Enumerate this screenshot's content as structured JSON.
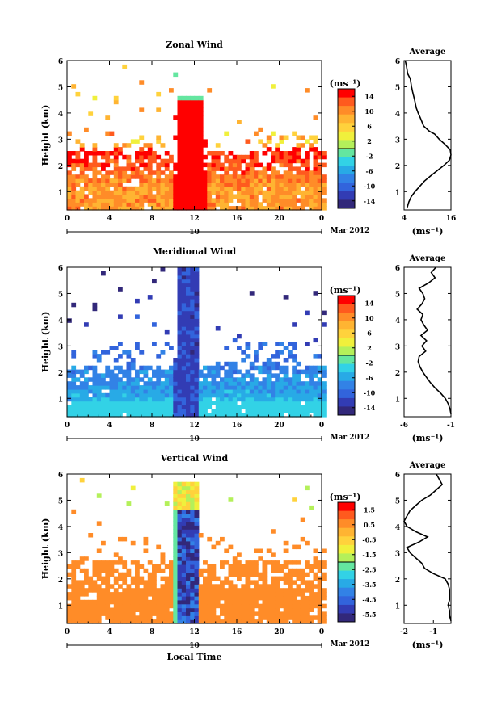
{
  "colors": {
    "colormap": [
      "#ff0000",
      "#ff5a1e",
      "#ff8c28",
      "#ffb432",
      "#ffd23c",
      "#f0f03c",
      "#b4f05a",
      "#64e6a0",
      "#32d2e6",
      "#28aae6",
      "#3282e6",
      "#3264dc",
      "#323cb4",
      "#32287a"
    ]
  },
  "chart_data": [
    {
      "type": "heatmap",
      "title": "Zonal Wind",
      "ylabel": "Height (km)",
      "xlabel": "",
      "xlim": [
        0,
        24
      ],
      "ylim": [
        0.3,
        6
      ],
      "x_ticks": [
        "0",
        "4",
        "8",
        "12",
        "16",
        "20",
        "0"
      ],
      "y_ticks": [
        "1",
        "2",
        "3",
        "4",
        "5",
        "6"
      ],
      "date_day": "10",
      "date_label": "Mar 2012",
      "colorbar": {
        "unit": "(ms⁻¹)",
        "ticks": [
          "14",
          "10",
          "6",
          "2",
          "-2",
          "-6",
          "-10",
          "-14"
        ],
        "range": [
          -15,
          15
        ]
      },
      "avg_panel": {
        "title": "Average",
        "xlabel": "(ms⁻¹)",
        "x_ticks": [
          "4",
          "16"
        ],
        "xlim": [
          4,
          16
        ],
        "y_ticks": [
          "1",
          "2",
          "3",
          "4",
          "5",
          "6"
        ],
        "profile": [
          [
            6.0,
            4.3
          ],
          [
            5.8,
            4.6
          ],
          [
            5.5,
            4.9
          ],
          [
            5.3,
            5.6
          ],
          [
            5.0,
            5.9
          ],
          [
            4.8,
            6.2
          ],
          [
            4.5,
            6.7
          ],
          [
            4.2,
            7.1
          ],
          [
            4.0,
            7.6
          ],
          [
            3.8,
            8.2
          ],
          [
            3.5,
            9.0
          ],
          [
            3.3,
            10.5
          ],
          [
            3.2,
            11.8
          ],
          [
            3.0,
            13.0
          ],
          [
            2.8,
            14.5
          ],
          [
            2.6,
            15.8
          ],
          [
            2.4,
            16.0
          ],
          [
            2.2,
            15.6
          ],
          [
            2.0,
            14.2
          ],
          [
            1.8,
            12.5
          ],
          [
            1.6,
            10.8
          ],
          [
            1.4,
            9.2
          ],
          [
            1.2,
            8.0
          ],
          [
            1.0,
            6.8
          ],
          [
            0.8,
            5.8
          ],
          [
            0.6,
            5.2
          ],
          [
            0.4,
            4.8
          ]
        ]
      }
    },
    {
      "type": "heatmap",
      "title": "Meridional Wind",
      "ylabel": "Height (km)",
      "xlabel": "",
      "xlim": [
        0,
        24
      ],
      "ylim": [
        0.3,
        6
      ],
      "x_ticks": [
        "0",
        "4",
        "8",
        "12",
        "16",
        "20",
        "0"
      ],
      "y_ticks": [
        "1",
        "2",
        "3",
        "4",
        "5",
        "6"
      ],
      "date_day": "10",
      "date_label": "Mar 2012",
      "colorbar": {
        "unit": "(ms⁻¹)",
        "ticks": [
          "14",
          "10",
          "6",
          "2",
          "-2",
          "-6",
          "-10",
          "-14"
        ],
        "range": [
          -15,
          15
        ]
      },
      "avg_panel": {
        "title": "Average",
        "xlabel": "(ms⁻¹)",
        "x_ticks": [
          "-6",
          "-1"
        ],
        "xlim": [
          -6,
          -1
        ],
        "y_ticks": [
          "1",
          "2",
          "3",
          "4",
          "5",
          "6"
        ],
        "profile": [
          [
            6.0,
            -2.6
          ],
          [
            5.8,
            -3.1
          ],
          [
            5.6,
            -2.7
          ],
          [
            5.4,
            -3.4
          ],
          [
            5.2,
            -4.4
          ],
          [
            5.0,
            -4.0
          ],
          [
            4.8,
            -3.8
          ],
          [
            4.6,
            -4.1
          ],
          [
            4.4,
            -4.6
          ],
          [
            4.2,
            -4.0
          ],
          [
            4.0,
            -4.2
          ],
          [
            3.8,
            -3.9
          ],
          [
            3.6,
            -3.5
          ],
          [
            3.4,
            -4.2
          ],
          [
            3.2,
            -3.6
          ],
          [
            3.0,
            -4.1
          ],
          [
            2.8,
            -3.7
          ],
          [
            2.6,
            -4.4
          ],
          [
            2.4,
            -4.5
          ],
          [
            2.2,
            -4.3
          ],
          [
            2.0,
            -4.0
          ],
          [
            1.8,
            -3.6
          ],
          [
            1.6,
            -3.2
          ],
          [
            1.4,
            -2.7
          ],
          [
            1.2,
            -2.1
          ],
          [
            1.0,
            -1.6
          ],
          [
            0.8,
            -1.3
          ],
          [
            0.6,
            -1.1
          ],
          [
            0.4,
            -1.0
          ]
        ]
      }
    },
    {
      "type": "heatmap",
      "title": "Vertical Wind",
      "ylabel": "Height (km)",
      "xlabel": "Local Time",
      "xlim": [
        0,
        24
      ],
      "ylim": [
        0.3,
        6
      ],
      "x_ticks": [
        "0",
        "4",
        "8",
        "12",
        "16",
        "20",
        "0"
      ],
      "y_ticks": [
        "1",
        "2",
        "3",
        "4",
        "5",
        "6"
      ],
      "date_day": "10",
      "date_label": "Mar 2012",
      "colorbar": {
        "unit": "(ms⁻¹)",
        "ticks": [
          "1.5",
          "0.5",
          "-0.5",
          "-1.5",
          "-2.5",
          "-3.5",
          "-4.5",
          "-5.5"
        ],
        "range": [
          -6,
          2
        ]
      },
      "avg_panel": {
        "title": "Average",
        "xlabel": "(ms⁻¹)",
        "x_ticks": [
          "-2",
          "-1"
        ],
        "xlim": [
          -2,
          -0.4
        ],
        "y_ticks": [
          "1",
          "2",
          "3",
          "4",
          "5",
          "6"
        ],
        "profile": [
          [
            6.0,
            -0.9
          ],
          [
            5.8,
            -0.8
          ],
          [
            5.6,
            -0.7
          ],
          [
            5.4,
            -0.9
          ],
          [
            5.2,
            -1.1
          ],
          [
            5.0,
            -1.4
          ],
          [
            4.8,
            -1.6
          ],
          [
            4.6,
            -1.8
          ],
          [
            4.4,
            -1.9
          ],
          [
            4.2,
            -2.0
          ],
          [
            4.0,
            -1.9
          ],
          [
            3.8,
            -1.6
          ],
          [
            3.6,
            -1.2
          ],
          [
            3.4,
            -1.5
          ],
          [
            3.2,
            -1.9
          ],
          [
            3.0,
            -1.8
          ],
          [
            2.8,
            -1.6
          ],
          [
            2.6,
            -1.4
          ],
          [
            2.4,
            -1.3
          ],
          [
            2.2,
            -1.0
          ],
          [
            2.0,
            -0.6
          ],
          [
            1.8,
            -0.5
          ],
          [
            1.6,
            -0.45
          ],
          [
            1.4,
            -0.45
          ],
          [
            1.2,
            -0.45
          ],
          [
            1.0,
            -0.5
          ],
          [
            0.8,
            -0.45
          ],
          [
            0.6,
            -0.45
          ],
          [
            0.4,
            -0.4
          ]
        ]
      }
    }
  ]
}
